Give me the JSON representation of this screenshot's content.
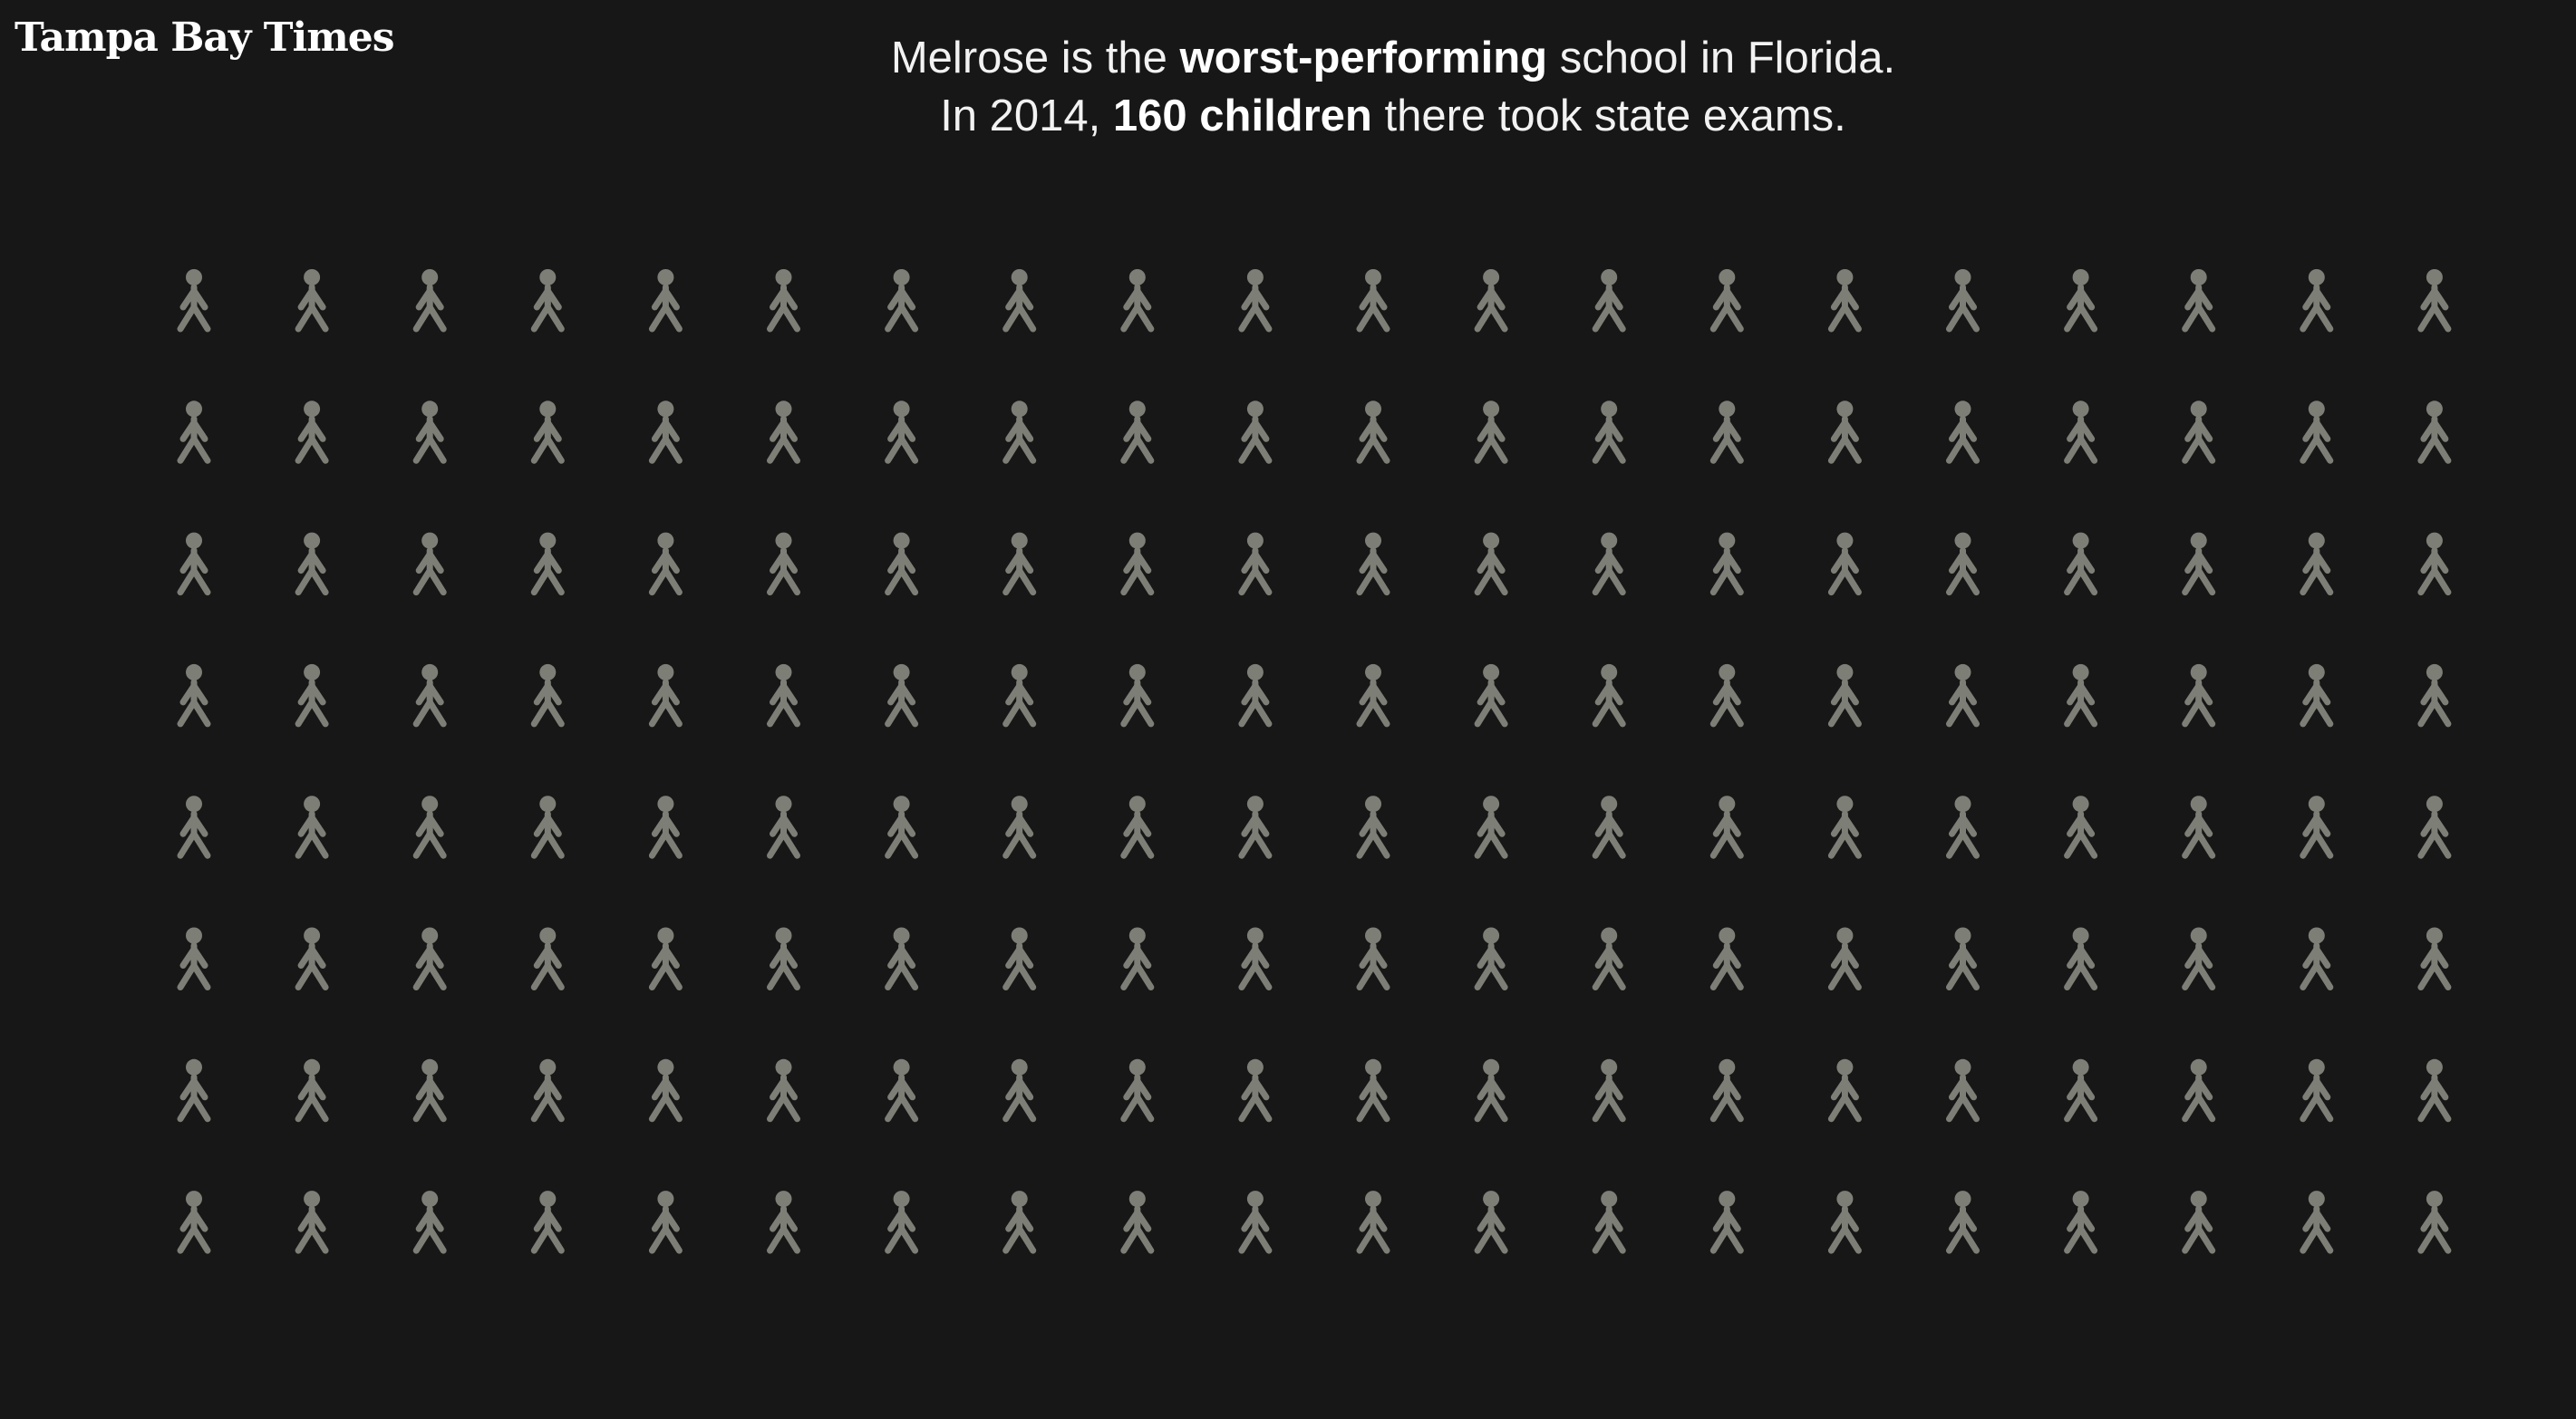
{
  "logo": {
    "text": "Tampa Bay Times"
  },
  "headline": {
    "part1": "Melrose is the ",
    "bold1": "worst-performing",
    "part2": " school in Florida. In 2014, ",
    "bold2": "160 children",
    "part3": " there took state exams."
  },
  "colors": {
    "background": "#171717",
    "icon": "#7d7f77",
    "text": "#f2f2f2"
  },
  "chart_data": {
    "type": "pictograph",
    "icon": "person-icon",
    "count": 160,
    "rows": 8,
    "columns": 20
  }
}
